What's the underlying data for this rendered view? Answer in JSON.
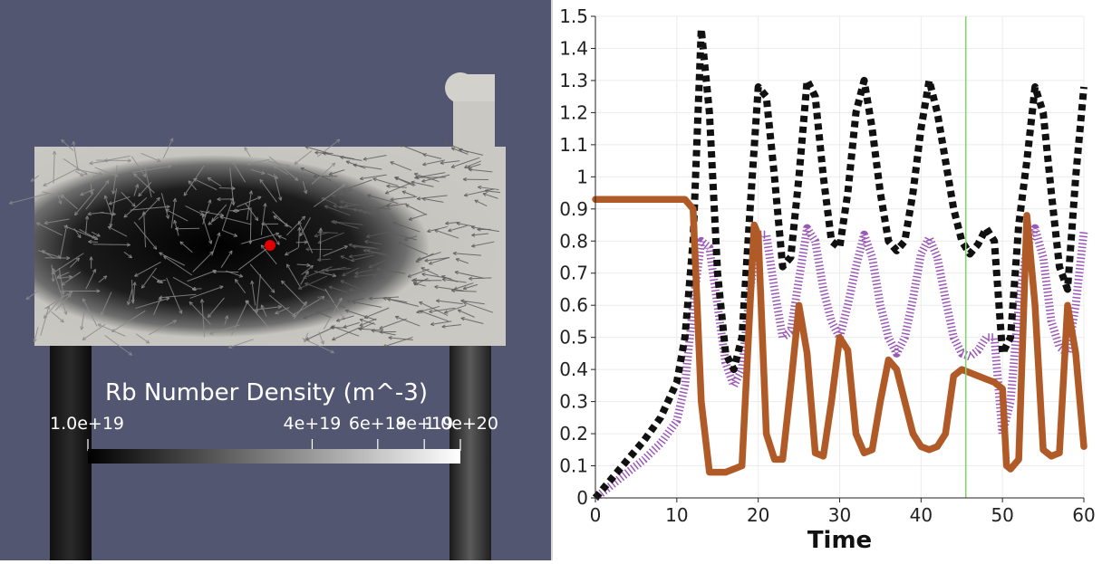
{
  "colorbar": {
    "title": "Rb Number Density (m^-3)",
    "labels": [
      "1.0e+19",
      "4e+19",
      "6e+19",
      "8e+19",
      "1.0e+20"
    ],
    "label_values": [
      1e+19,
      4e+19,
      6e+19,
      8e+19,
      1e+20
    ]
  },
  "probe": {
    "color": "#e00000"
  },
  "colors": {
    "background": "#525670",
    "series_black": "#111111",
    "series_purple": "#9b59b6",
    "series_brown": "#b05a28",
    "time_marker": "#7ed96b"
  },
  "chart_data": {
    "type": "line",
    "title": "",
    "xlabel": "Time",
    "ylabel": "",
    "xlim": [
      0,
      60
    ],
    "ylim": [
      0,
      1.5
    ],
    "x_ticks": [
      "0",
      "10",
      "20",
      "30",
      "40",
      "50",
      "60"
    ],
    "y_ticks": [
      "0",
      "0.1",
      "0.2",
      "0.3",
      "0.4",
      "0.5",
      "0.6",
      "0.7",
      "0.8",
      "0.9",
      "1",
      "1.1",
      "1.2",
      "1.3",
      "1.4",
      "1.5"
    ],
    "grid": true,
    "time_marker_x": 45.5,
    "series": [
      {
        "color": "#111111",
        "style": "dashed-thick",
        "x": [
          0,
          2,
          4,
          6,
          8,
          10,
          11,
          12,
          13,
          14,
          15,
          16,
          17,
          18,
          19,
          20,
          21,
          22,
          23,
          24,
          25,
          26,
          27,
          28,
          29,
          30,
          31,
          32,
          33,
          34,
          35,
          36,
          37,
          38,
          39,
          40,
          41,
          42,
          43,
          44,
          45,
          46,
          47,
          48,
          49,
          50,
          51,
          52,
          53,
          54,
          55,
          56,
          57,
          58,
          59,
          60
        ],
        "y": [
          0.0,
          0.06,
          0.12,
          0.18,
          0.25,
          0.36,
          0.5,
          0.8,
          1.46,
          1.2,
          0.7,
          0.45,
          0.4,
          0.5,
          0.9,
          1.28,
          1.25,
          1.0,
          0.72,
          0.75,
          1.0,
          1.3,
          1.25,
          1.0,
          0.8,
          0.78,
          0.95,
          1.2,
          1.3,
          1.15,
          0.95,
          0.8,
          0.77,
          0.8,
          0.95,
          1.15,
          1.3,
          1.2,
          1.05,
          0.9,
          0.8,
          0.76,
          0.79,
          0.84,
          0.8,
          0.45,
          0.5,
          0.85,
          1.05,
          1.28,
          1.2,
          0.95,
          0.72,
          0.65,
          1.0,
          1.28
        ]
      },
      {
        "color": "#9b59b6",
        "style": "dotted",
        "x": [
          0,
          2,
          4,
          6,
          8,
          10,
          11,
          12,
          13,
          14,
          15,
          16,
          17,
          18,
          19,
          20,
          21,
          22,
          23,
          24,
          25,
          26,
          27,
          28,
          29,
          30,
          31,
          32,
          33,
          34,
          35,
          36,
          37,
          38,
          39,
          40,
          41,
          42,
          43,
          44,
          45,
          46,
          47,
          48,
          49,
          50,
          51,
          52,
          53,
          54,
          55,
          56,
          57,
          58,
          59,
          60
        ],
        "y": [
          0.0,
          0.04,
          0.08,
          0.12,
          0.17,
          0.24,
          0.35,
          0.6,
          0.8,
          0.78,
          0.6,
          0.42,
          0.35,
          0.4,
          0.65,
          0.82,
          0.82,
          0.65,
          0.5,
          0.52,
          0.68,
          0.84,
          0.8,
          0.65,
          0.55,
          0.5,
          0.6,
          0.72,
          0.82,
          0.75,
          0.6,
          0.5,
          0.45,
          0.5,
          0.62,
          0.76,
          0.81,
          0.75,
          0.62,
          0.5,
          0.45,
          0.44,
          0.46,
          0.5,
          0.5,
          0.2,
          0.3,
          0.6,
          0.78,
          0.84,
          0.75,
          0.55,
          0.47,
          0.45,
          0.6,
          0.83
        ]
      },
      {
        "color": "#b05a28",
        "style": "solid-thick",
        "x": [
          0,
          2,
          4,
          6,
          8,
          10,
          11,
          12,
          12.5,
          13,
          14,
          15,
          16,
          17,
          18,
          19,
          19.5,
          20,
          21,
          22,
          23,
          24,
          25,
          26,
          27,
          28,
          29,
          30,
          31,
          32,
          33,
          34,
          35,
          36,
          37,
          38,
          39,
          40,
          41,
          42,
          43,
          44,
          45,
          46,
          47,
          48,
          49,
          50,
          50.5,
          51,
          52,
          53,
          54,
          55,
          56,
          57,
          58,
          59,
          60
        ],
        "y": [
          0.93,
          0.93,
          0.93,
          0.93,
          0.93,
          0.93,
          0.93,
          0.9,
          0.6,
          0.3,
          0.08,
          0.08,
          0.08,
          0.09,
          0.1,
          0.6,
          0.85,
          0.82,
          0.2,
          0.12,
          0.12,
          0.35,
          0.6,
          0.45,
          0.14,
          0.13,
          0.3,
          0.5,
          0.46,
          0.2,
          0.14,
          0.15,
          0.3,
          0.43,
          0.4,
          0.3,
          0.2,
          0.16,
          0.15,
          0.16,
          0.2,
          0.38,
          0.4,
          0.39,
          0.38,
          0.37,
          0.36,
          0.34,
          0.1,
          0.09,
          0.12,
          0.88,
          0.6,
          0.15,
          0.13,
          0.14,
          0.6,
          0.45,
          0.16
        ]
      }
    ]
  }
}
